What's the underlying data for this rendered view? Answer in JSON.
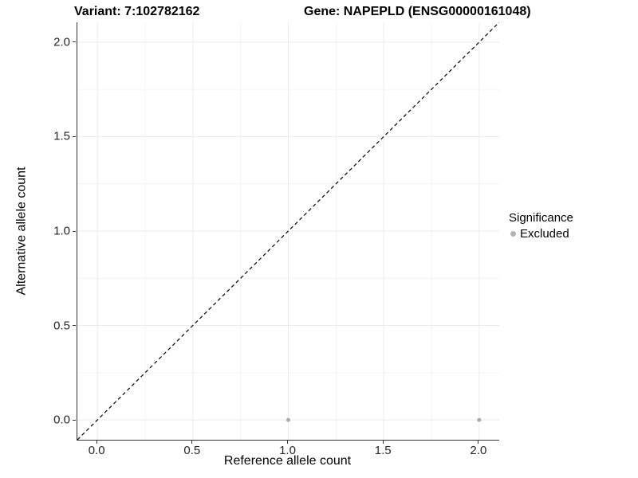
{
  "chart_data": {
    "type": "scatter",
    "title_left": "Variant: 7:102782162",
    "title_right": "Gene: NAPEPLD (ENSG00000161048)",
    "xlabel": "Reference allele count",
    "ylabel": "Alternative allele count",
    "x_domain": [
      -0.105,
      2.105
    ],
    "y_domain": [
      -0.105,
      2.105
    ],
    "x_ticks": [
      0.0,
      0.5,
      1.0,
      1.5,
      2.0
    ],
    "y_ticks": [
      0.0,
      0.5,
      1.0,
      1.5,
      2.0
    ],
    "x_tick_labels": [
      "0.0",
      "0.5",
      "1.0",
      "1.5",
      "2.0"
    ],
    "y_tick_labels": [
      "0.0",
      "0.5",
      "1.0",
      "1.5",
      "2.0"
    ],
    "x_minor_ticks": [
      0.25,
      0.75,
      1.25,
      1.75
    ],
    "y_minor_ticks": [
      0.25,
      0.75,
      1.25,
      1.75
    ],
    "grid": true,
    "series": [
      {
        "name": "Excluded",
        "points": [
          {
            "x": 1.0,
            "y": 0.0
          },
          {
            "x": 2.0,
            "y": 0.0
          }
        ]
      }
    ],
    "reference_line": {
      "slope": 1,
      "intercept": 0,
      "style": "dashed"
    },
    "legend": {
      "title": "Significance",
      "position": "right",
      "items": [
        {
          "label": "Excluded",
          "color": "#b3b3b3"
        }
      ]
    }
  },
  "colors": {
    "point": "#aaaaaa",
    "grid_major": "#ebebeb",
    "grid_minor": "#f4f4f4",
    "axis_line": "#333333",
    "tick_text": "#262626",
    "reference_line": "#000000",
    "background": "#ffffff"
  }
}
